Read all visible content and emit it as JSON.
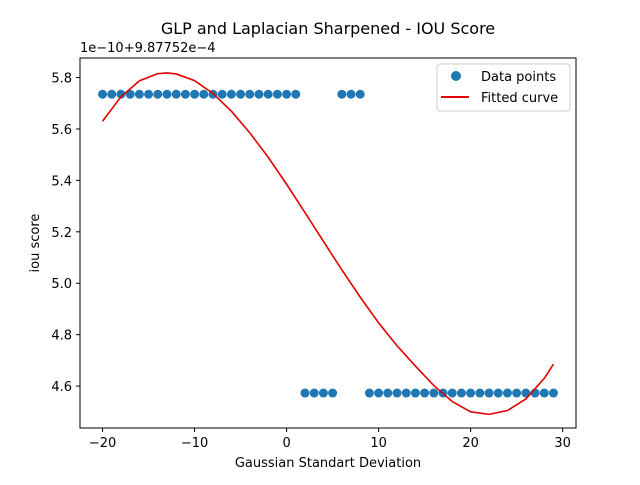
{
  "chart_data": {
    "type": "scatter",
    "title": "GLP and Laplacian Sharpened - IOU Score",
    "xlabel": "Gaussian  Standart Deviation",
    "ylabel": "iou score",
    "y_offset_text": "1e−10+9.87752e−4",
    "xlim": [
      -22.45,
      31.45
    ],
    "ylim": [
      4.437,
      5.876
    ],
    "xticks": [
      -20,
      -10,
      0,
      10,
      20,
      30
    ],
    "xtick_labels": [
      "−20",
      "−10",
      "0",
      "10",
      "20",
      "30"
    ],
    "yticks": [
      4.6,
      4.8,
      5.0,
      5.2,
      5.4,
      5.6,
      5.8
    ],
    "ytick_labels": [
      "4.6",
      "4.8",
      "5.0",
      "5.2",
      "5.4",
      "5.6",
      "5.8"
    ],
    "grid": false,
    "legend_position": "upper right",
    "series": [
      {
        "name": "Data points",
        "kind": "scatter",
        "color": "#1f77b4",
        "x": [
          -20,
          -19,
          -18,
          -17,
          -16,
          -15,
          -14,
          -13,
          -12,
          -11,
          -10,
          -9,
          -8,
          -7,
          -6,
          -5,
          -4,
          -3,
          -2,
          -1,
          0,
          1,
          2,
          3,
          4,
          5,
          6,
          7,
          8,
          9,
          10,
          11,
          12,
          13,
          14,
          15,
          16,
          17,
          18,
          19,
          20,
          21,
          22,
          23,
          24,
          25,
          26,
          27,
          28,
          29
        ],
        "y": [
          5.735,
          5.735,
          5.735,
          5.735,
          5.735,
          5.735,
          5.735,
          5.735,
          5.735,
          5.735,
          5.735,
          5.735,
          5.735,
          5.735,
          5.735,
          5.735,
          5.735,
          5.735,
          5.735,
          5.735,
          5.735,
          5.735,
          4.573,
          4.573,
          4.573,
          4.573,
          5.735,
          5.735,
          5.735,
          4.573,
          4.573,
          4.573,
          4.573,
          4.573,
          4.573,
          4.573,
          4.573,
          4.573,
          4.573,
          4.573,
          4.573,
          4.573,
          4.573,
          4.573,
          4.573,
          4.573,
          4.573,
          4.573,
          4.573,
          4.573
        ]
      },
      {
        "name": "Fitted curve",
        "kind": "line",
        "color": "#e00000",
        "x": [
          -20,
          -18,
          -16,
          -14,
          -13,
          -12,
          -10,
          -8,
          -6,
          -4,
          -2,
          0,
          2,
          4,
          6,
          8,
          10,
          12,
          14,
          16,
          18,
          20,
          22,
          24,
          26,
          28,
          29
        ],
        "y": [
          5.63,
          5.725,
          5.787,
          5.815,
          5.818,
          5.814,
          5.788,
          5.738,
          5.669,
          5.585,
          5.49,
          5.385,
          5.275,
          5.163,
          5.052,
          4.946,
          4.846,
          4.757,
          4.678,
          4.602,
          4.54,
          4.5,
          4.49,
          4.505,
          4.55,
          4.63,
          4.685
        ]
      }
    ]
  }
}
